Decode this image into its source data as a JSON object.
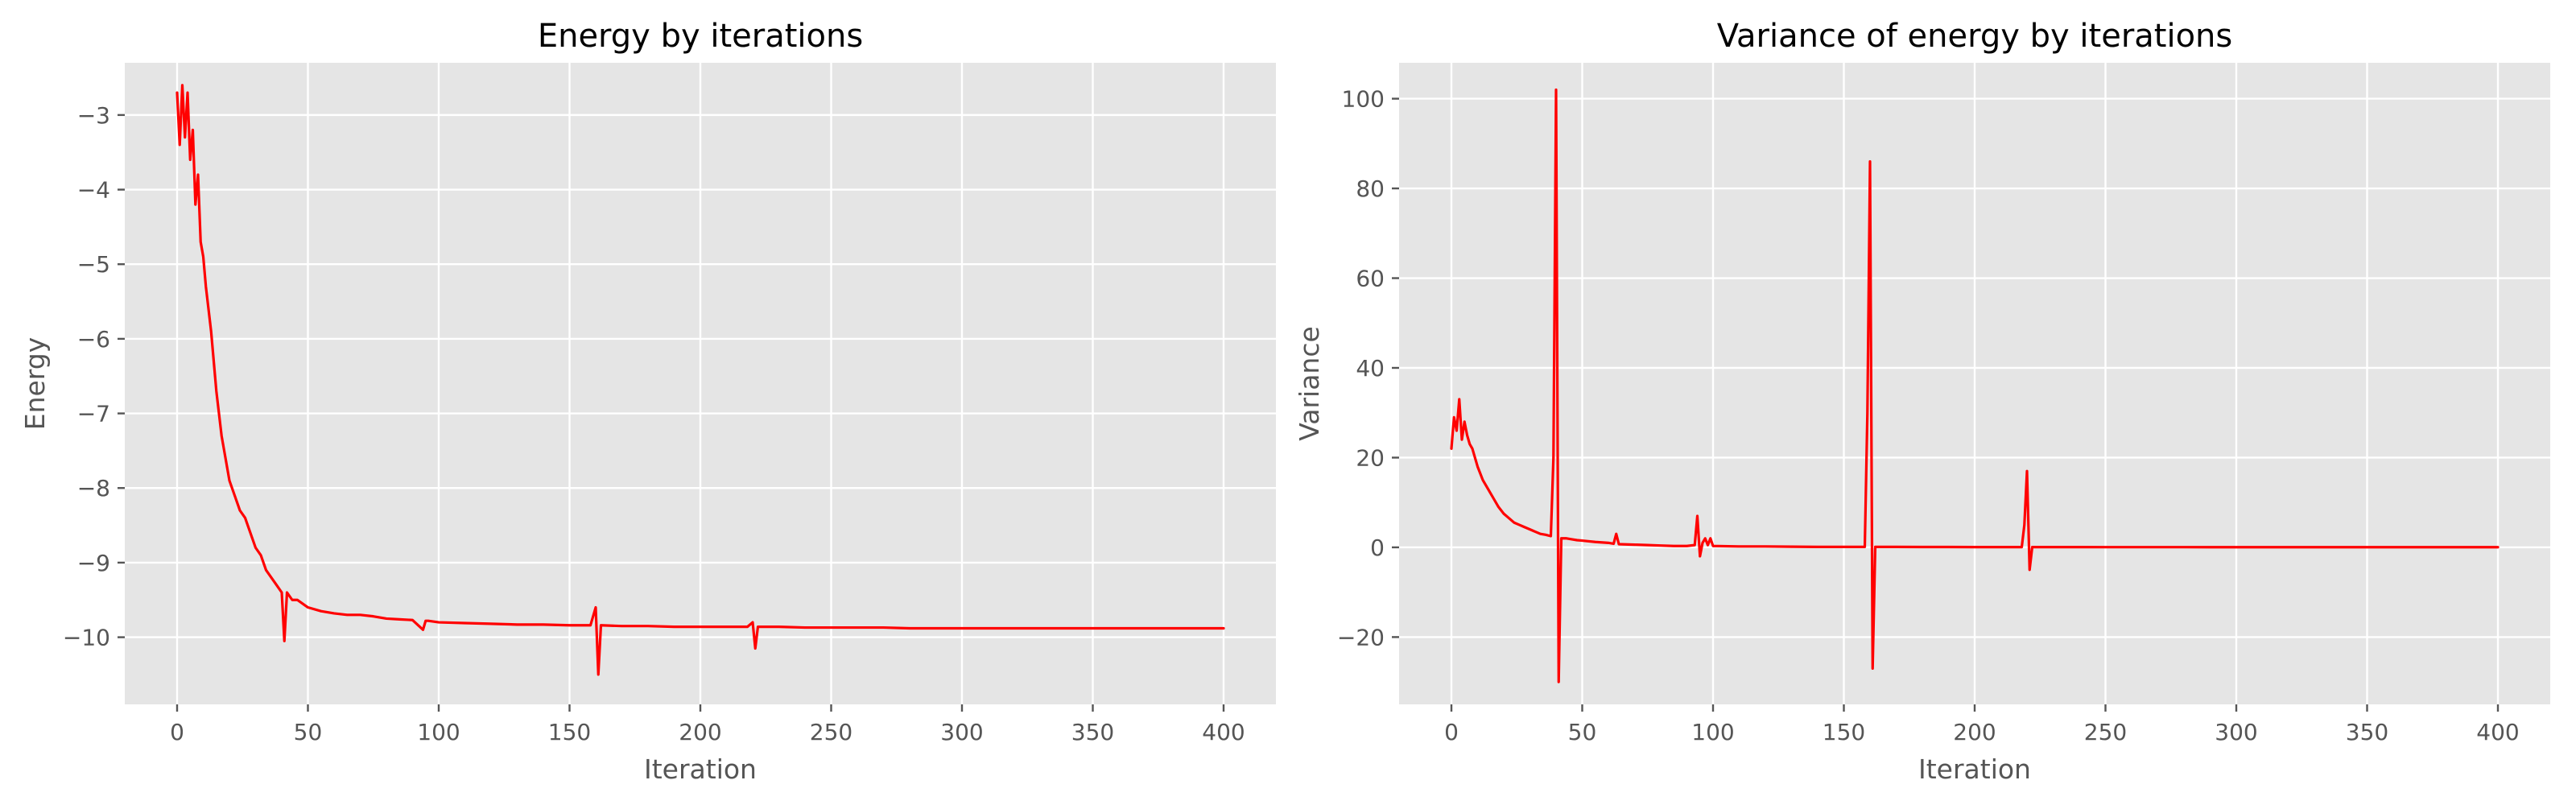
{
  "chart_data": [
    {
      "type": "line",
      "title": "Energy by iterations",
      "xlabel": "Iteration",
      "ylabel": "Energy",
      "xlim": [
        -20,
        420
      ],
      "ylim": [
        -10.9,
        -2.3
      ],
      "xticks": [
        0,
        50,
        100,
        150,
        200,
        250,
        300,
        350,
        400
      ],
      "yticks": [
        -10,
        -9,
        -8,
        -7,
        -6,
        -5,
        -4,
        -3
      ],
      "xtick_labels": [
        "0",
        "50",
        "100",
        "150",
        "200",
        "250",
        "300",
        "350",
        "400"
      ],
      "ytick_labels": [
        "−10",
        "−9",
        "−8",
        "−7",
        "−6",
        "−5",
        "−4",
        "−3"
      ],
      "grid": true,
      "color": "#ff0000",
      "series": [
        {
          "x": [
            0,
            1,
            2,
            3,
            4,
            5,
            6,
            7,
            8,
            9,
            10,
            11,
            12,
            13,
            14,
            15,
            16,
            17,
            18,
            19,
            20,
            22,
            24,
            26,
            28,
            30,
            32,
            34,
            36,
            38,
            40,
            41,
            42,
            44,
            46,
            48,
            50,
            55,
            60,
            65,
            70,
            75,
            80,
            85,
            90,
            94,
            95,
            96,
            100,
            110,
            120,
            130,
            140,
            150,
            158,
            160,
            161,
            162,
            170,
            180,
            190,
            200,
            210,
            218,
            220,
            221,
            222,
            230,
            240,
            250,
            260,
            270,
            280,
            290,
            300,
            310,
            320,
            330,
            340,
            350,
            360,
            370,
            380,
            390,
            400
          ],
          "y": [
            -2.7,
            -3.4,
            -2.6,
            -3.3,
            -2.7,
            -3.6,
            -3.2,
            -4.2,
            -3.8,
            -4.7,
            -4.9,
            -5.3,
            -5.6,
            -5.9,
            -6.3,
            -6.7,
            -7.0,
            -7.3,
            -7.5,
            -7.7,
            -7.9,
            -8.1,
            -8.3,
            -8.4,
            -8.6,
            -8.8,
            -8.9,
            -9.1,
            -9.2,
            -9.3,
            -9.4,
            -10.05,
            -9.4,
            -9.5,
            -9.5,
            -9.55,
            -9.6,
            -9.65,
            -9.68,
            -9.7,
            -9.7,
            -9.72,
            -9.75,
            -9.76,
            -9.77,
            -9.9,
            -9.78,
            -9.78,
            -9.8,
            -9.81,
            -9.82,
            -9.83,
            -9.83,
            -9.84,
            -9.84,
            -9.6,
            -10.5,
            -9.84,
            -9.85,
            -9.85,
            -9.86,
            -9.86,
            -9.86,
            -9.86,
            -9.8,
            -10.15,
            -9.86,
            -9.86,
            -9.87,
            -9.87,
            -9.87,
            -9.87,
            -9.88,
            -9.88,
            -9.88,
            -9.88,
            -9.88,
            -9.88,
            -9.88,
            -9.88,
            -9.88,
            -9.88,
            -9.88,
            -9.88,
            -9.88
          ]
        }
      ]
    },
    {
      "type": "line",
      "title": "Variance of energy by iterations",
      "xlabel": "Iteration",
      "ylabel": "Variance",
      "xlim": [
        -20,
        420
      ],
      "ylim": [
        -35,
        108
      ],
      "xticks": [
        0,
        50,
        100,
        150,
        200,
        250,
        300,
        350,
        400
      ],
      "yticks": [
        -20,
        0,
        20,
        40,
        60,
        80,
        100
      ],
      "xtick_labels": [
        "0",
        "50",
        "100",
        "150",
        "200",
        "250",
        "300",
        "350",
        "400"
      ],
      "ytick_labels": [
        "−20",
        "0",
        "20",
        "40",
        "60",
        "80",
        "100"
      ],
      "grid": true,
      "color": "#ff0000",
      "series": [
        {
          "x": [
            0,
            1,
            2,
            3,
            4,
            5,
            6,
            7,
            8,
            9,
            10,
            12,
            14,
            16,
            18,
            20,
            22,
            24,
            26,
            28,
            30,
            32,
            34,
            36,
            38,
            39,
            40,
            41,
            42,
            44,
            46,
            48,
            50,
            55,
            60,
            62,
            63,
            64,
            70,
            75,
            80,
            85,
            90,
            93,
            94,
            95,
            96,
            97,
            98,
            99,
            100,
            110,
            120,
            130,
            140,
            150,
            158,
            159,
            160,
            161,
            162,
            170,
            180,
            190,
            200,
            210,
            218,
            219,
            220,
            221,
            222,
            230,
            240,
            250,
            260,
            270,
            280,
            290,
            300,
            310,
            320,
            330,
            340,
            350,
            360,
            370,
            380,
            390,
            400
          ],
          "y": [
            22,
            29,
            26,
            33,
            24,
            28,
            25,
            23,
            22,
            20,
            18,
            15,
            13,
            11,
            9,
            7.5,
            6.5,
            5.5,
            5,
            4.5,
            4,
            3.5,
            3,
            2.8,
            2.5,
            20,
            102,
            -30,
            2,
            2,
            1.8,
            1.6,
            1.5,
            1.2,
            1.0,
            0.8,
            3,
            0.7,
            0.6,
            0.5,
            0.4,
            0.3,
            0.3,
            0.5,
            7,
            -2,
            1,
            2,
            0.5,
            2,
            0.3,
            0.2,
            0.2,
            0.15,
            0.1,
            0.1,
            0.1,
            30,
            86,
            -27,
            0.1,
            0.1,
            0.08,
            0.08,
            0.06,
            0.06,
            0.06,
            5,
            17,
            -5,
            0.05,
            0.05,
            0.05,
            0.04,
            0.04,
            0.04,
            0.04,
            0.03,
            0.03,
            0.03,
            0.03,
            0.03,
            0.03,
            0.03,
            0.03,
            0.03,
            0.03,
            0.03,
            0.03
          ]
        }
      ]
    }
  ]
}
